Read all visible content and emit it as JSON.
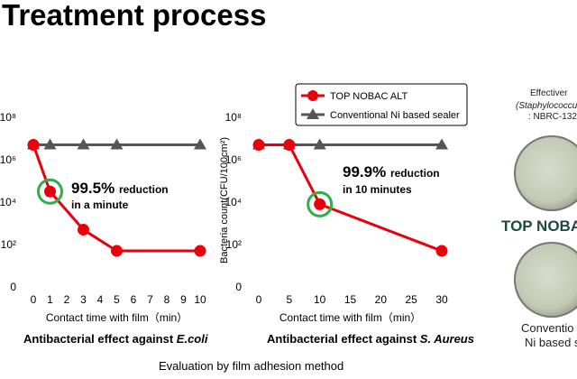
{
  "title": "Treatment process",
  "legend": {
    "series1": "TOP NOBAC ALT",
    "series2": "Conventional Ni based sealer"
  },
  "colors": {
    "treated": "#e8000b",
    "conventional": "#555555",
    "highlight": "#2db04b"
  },
  "chart_data": [
    {
      "type": "line",
      "title": "Antibacterial effect against E.coli",
      "xlabel": "Contact time with film（min）",
      "ylabel": "",
      "x_ticks": [
        0,
        1,
        2,
        3,
        4,
        5,
        6,
        7,
        8,
        9,
        10
      ],
      "y_ticks": [
        "0",
        "10²",
        "10⁴",
        "10⁶",
        "10⁸"
      ],
      "y_scale": "log",
      "ylim_exponent": [
        0,
        8
      ],
      "annotation": {
        "value": "99.5%",
        "text1": "reduction",
        "text2": "in a minute"
      },
      "series": [
        {
          "name": "TOP NOBAC ALT",
          "x": [
            0,
            1,
            3,
            5,
            10
          ],
          "log10_y": [
            6.7,
            4.5,
            2.7,
            1.7,
            1.7
          ]
        },
        {
          "name": "Conventional Ni based sealer",
          "x": [
            0,
            1,
            3,
            5,
            10
          ],
          "log10_y": [
            6.7,
            6.7,
            6.7,
            6.7,
            6.7
          ]
        }
      ],
      "highlight_index": 1
    },
    {
      "type": "line",
      "title": "Antibacterial effect against S. Aureus",
      "xlabel": "Contact time with film（min）",
      "ylabel": "Bacteria count(CFU/100cm²)",
      "x_ticks": [
        0,
        5,
        10,
        15,
        20,
        25,
        30
      ],
      "y_ticks": [
        "0",
        "10²",
        "10⁴",
        "10⁶",
        "10⁸"
      ],
      "y_scale": "log",
      "ylim_exponent": [
        0,
        8
      ],
      "annotation": {
        "value": "99.9%",
        "text1": "reduction",
        "text2": "in 10 minutes"
      },
      "series": [
        {
          "name": "TOP NOBAC ALT",
          "x": [
            0,
            5,
            10,
            30
          ],
          "log10_y": [
            6.7,
            6.7,
            3.9,
            1.7
          ]
        },
        {
          "name": "Conventional Ni based sealer",
          "x": [
            0,
            5,
            10,
            30
          ],
          "log10_y": [
            6.7,
            6.7,
            6.7,
            6.7
          ]
        }
      ],
      "highlight_index": 2
    }
  ],
  "caption1": {
    "prefix": "Antibacterial effect against ",
    "organism": "E.coli"
  },
  "caption2": {
    "prefix": "Antibacterial effect against ",
    "organism": "S. Aureus"
  },
  "footer": "Evaluation by film adhesion method",
  "right_panel": {
    "title": "Effectiver",
    "subtitle1": "(Staphylococcu",
    "subtitle2": ": NBRC-132",
    "brand": "TOP NOBA",
    "conv1": "Conventio",
    "conv2": "Ni based s"
  }
}
